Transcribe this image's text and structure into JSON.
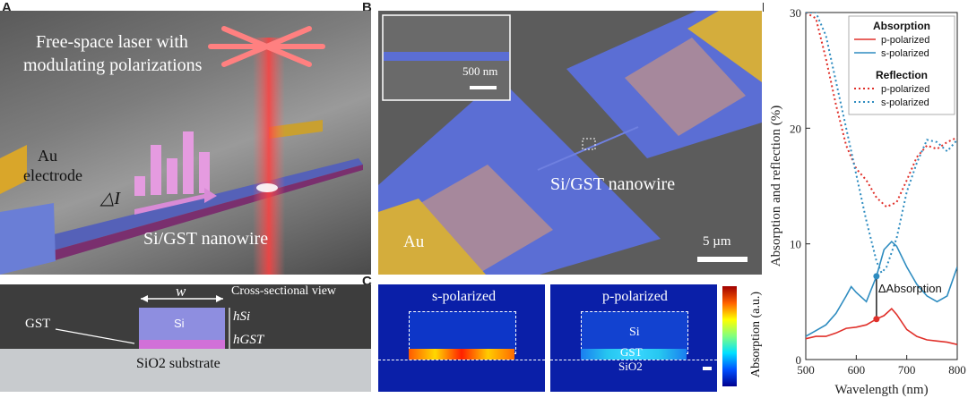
{
  "panel_letters": {
    "a": "A",
    "b": "B",
    "c": "C",
    "d": "D"
  },
  "panelA": {
    "laser_line1": "Free-space laser with",
    "laser_line2": "modulating polarizations",
    "au_line1": "Au",
    "au_line2": "electrode",
    "delta_i": "△I",
    "nanowire": "Si/GST nanowire",
    "cross_title": "Cross-sectional view",
    "w_label": "w",
    "si_label": "Si",
    "gst_label": "GST",
    "h_si": "hSi",
    "h_gst": "hGST",
    "substrate": "SiO2 substrate"
  },
  "panelB": {
    "scale_inset": "500 nm",
    "nanowire": "Si/GST nanowire",
    "au": "Au",
    "scale_main": "5 µm"
  },
  "panelC": {
    "s_title": "s-polarized",
    "p_title": "p-polarized",
    "si": "Si",
    "gst": "GST",
    "sio2": "SiO2",
    "colorbar_label": "Absorption (a.u.)"
  },
  "chart_data": {
    "type": "line",
    "xlabel": "Wavelength (nm)",
    "ylabel": "Absorption and reflection (%)",
    "xlim": [
      500,
      800
    ],
    "ylim": [
      0,
      30
    ],
    "xticks": [
      500,
      600,
      700,
      800
    ],
    "yticks": [
      0,
      10,
      20,
      30
    ],
    "legend": {
      "group1": "Absorption",
      "group2": "Reflection",
      "placement": "top-right"
    },
    "series": [
      {
        "name": "p-polarized",
        "group": "Absorption",
        "style": "solid",
        "color": "#e0302a",
        "x": [
          500,
          520,
          540,
          560,
          580,
          600,
          620,
          640,
          655,
          670,
          680,
          700,
          720,
          740,
          760,
          780,
          800
        ],
        "y": [
          1.8,
          2.0,
          2.0,
          2.3,
          2.7,
          2.8,
          3.0,
          3.5,
          3.8,
          4.4,
          3.9,
          2.6,
          2.0,
          1.7,
          1.6,
          1.5,
          1.3
        ]
      },
      {
        "name": "s-polarized",
        "group": "Absorption",
        "style": "solid",
        "color": "#2e8cc0",
        "x": [
          500,
          520,
          540,
          560,
          580,
          590,
          600,
          620,
          640,
          655,
          670,
          680,
          700,
          720,
          740,
          760,
          780,
          800
        ],
        "y": [
          2.0,
          2.5,
          3.0,
          4.0,
          5.5,
          6.3,
          5.8,
          5.0,
          7.2,
          9.5,
          10.2,
          9.8,
          8.0,
          6.5,
          5.5,
          5.0,
          5.5,
          8.0
        ]
      },
      {
        "name": "p-polarized",
        "group": "Reflection",
        "style": "dotted",
        "color": "#e0302a",
        "x": [
          500,
          520,
          540,
          560,
          580,
          600,
          620,
          640,
          660,
          680,
          700,
          720,
          740,
          760,
          780,
          800
        ],
        "y": [
          30,
          29.5,
          26,
          22,
          18.5,
          16.5,
          15.5,
          14,
          13.2,
          13.6,
          15.5,
          17.5,
          18.5,
          18.2,
          18.8,
          19.2
        ]
      },
      {
        "name": "s-polarized",
        "group": "Reflection",
        "style": "dotted",
        "color": "#2e8cc0",
        "x": [
          500,
          520,
          540,
          560,
          580,
          600,
          620,
          640,
          650,
          660,
          680,
          700,
          720,
          740,
          760,
          780,
          800
        ],
        "y": [
          30,
          30,
          28,
          24,
          20,
          16,
          12,
          8.5,
          7.5,
          8,
          10.5,
          14.5,
          17,
          19,
          18.8,
          18,
          19
        ]
      }
    ],
    "annotation": {
      "text": "ΔAbsorption",
      "x": 640,
      "y_top": 7.2,
      "y_bottom": 3.5
    }
  }
}
